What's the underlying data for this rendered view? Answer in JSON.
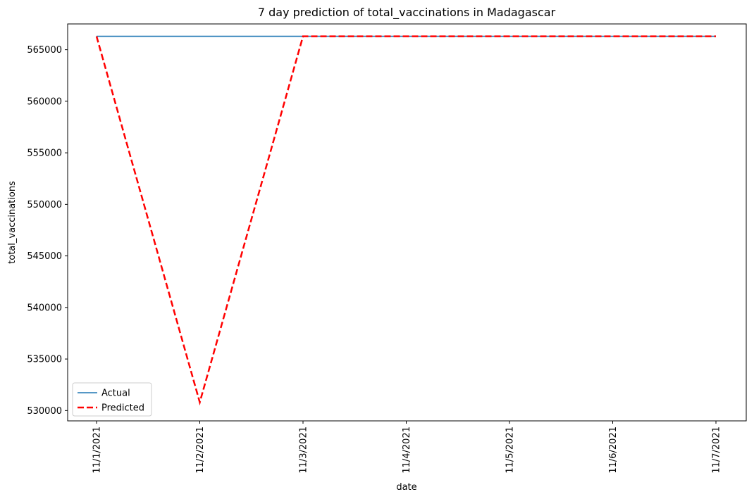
{
  "chart_data": {
    "type": "line",
    "title": "7 day prediction of total_vaccinations in Madagascar",
    "xlabel": "date",
    "ylabel": "total_vaccinations",
    "categories": [
      "11/1/2021",
      "11/2/2021",
      "11/3/2021",
      "11/4/2021",
      "11/5/2021",
      "11/6/2021",
      "11/7/2021"
    ],
    "ylim": [
      529000,
      567500
    ],
    "yticks": [
      530000,
      535000,
      540000,
      545000,
      550000,
      555000,
      560000,
      565000
    ],
    "grid": false,
    "legend_position": "lower-left",
    "series": [
      {
        "name": "Actual",
        "color": "#1f77b4",
        "style": "solid",
        "values": [
          566300,
          566300,
          566300,
          566300,
          566300,
          566300,
          566300
        ]
      },
      {
        "name": "Predicted",
        "color": "#ff0000",
        "style": "dashed",
        "values": [
          566300,
          530800,
          566300,
          566300,
          566300,
          566300,
          566300
        ]
      }
    ]
  }
}
